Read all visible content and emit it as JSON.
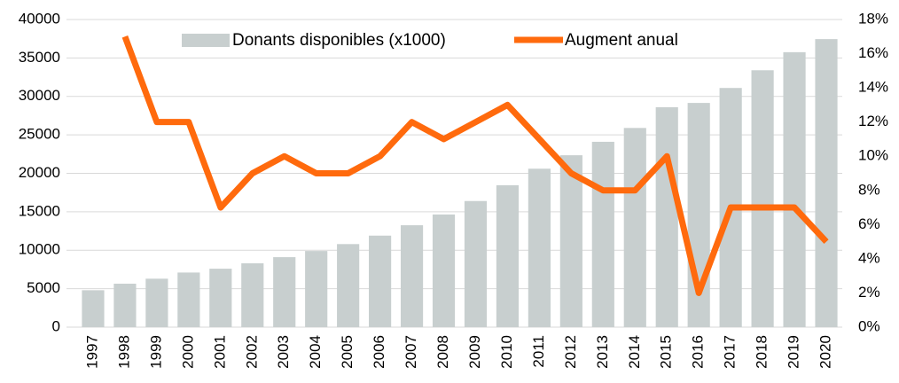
{
  "chart_data": {
    "type": "bar_line",
    "categories": [
      "1997",
      "1998",
      "1999",
      "2000",
      "2001",
      "2002",
      "2003",
      "2004",
      "2005",
      "2006",
      "2007",
      "2008",
      "2009",
      "2010",
      "2011",
      "2012",
      "2013",
      "2014",
      "2015",
      "2016",
      "2017",
      "2018",
      "2019",
      "2020"
    ],
    "series": [
      {
        "name": "Donants disponibles (x1000)",
        "color": "#c8cfcf",
        "type": "bar",
        "values": [
          4800,
          5650,
          6300,
          7100,
          7600,
          8300,
          9100,
          9900,
          10800,
          11900,
          13250,
          14650,
          16400,
          18450,
          20600,
          22350,
          24100,
          25900,
          28600,
          29150,
          31100,
          33400,
          35750,
          37450
        ]
      },
      {
        "name": "Augment anual",
        "color": "#ff6a0d",
        "type": "line",
        "axis": "y2",
        "values": [
          null,
          17,
          12,
          12,
          7,
          9,
          10,
          9,
          9,
          10,
          12,
          11,
          12,
          13,
          11,
          9,
          8,
          8,
          10,
          2,
          7,
          7,
          7,
          5
        ]
      }
    ],
    "ylim": [
      0,
      40000
    ],
    "yticks": [
      0,
      5000,
      10000,
      15000,
      20000,
      25000,
      30000,
      35000,
      40000
    ],
    "y2lim": [
      0,
      18
    ],
    "y2ticks": [
      {
        "value": 0,
        "label": "0%"
      },
      {
        "value": 2,
        "label": "2%"
      },
      {
        "value": 4,
        "label": "4%"
      },
      {
        "value": 6,
        "label": "6%"
      },
      {
        "value": 8,
        "label": "8%"
      },
      {
        "value": 10,
        "label": "10%"
      },
      {
        "value": 12,
        "label": "12%"
      },
      {
        "value": 14,
        "label": "14%"
      },
      {
        "value": 16,
        "label": "16%"
      },
      {
        "value": 18,
        "label": "18%"
      }
    ],
    "grid": true,
    "legend": "top"
  }
}
